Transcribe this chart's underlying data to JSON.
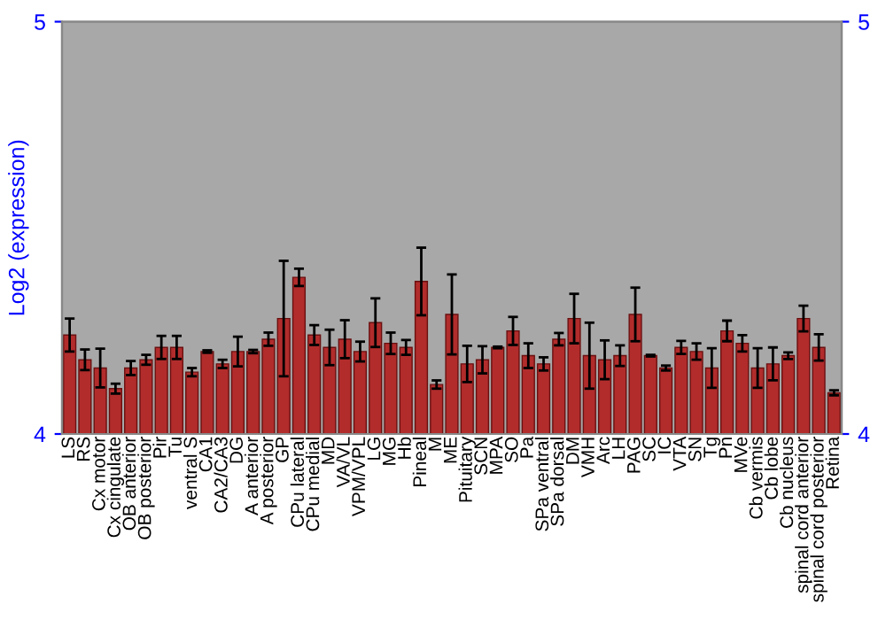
{
  "chart_data": {
    "type": "bar",
    "ylabel": "Log2 (expression)",
    "categories": [
      "LS",
      "RS",
      "Cx motor",
      "Cx cingulate",
      "OB anterior",
      "OB posterior",
      "Pir",
      "Tu",
      "ventral S",
      "CA1",
      "CA2/CA3",
      "DG",
      "A anterior",
      "A posterior",
      "GP",
      "CPu lateral",
      "CPu medial",
      "MD",
      "VA/VL",
      "VPM/VPL",
      "LG",
      "MG",
      "Hb",
      "Pineal",
      "M",
      "ME",
      "Pituitary",
      "SCN",
      "MPA",
      "SO",
      "Pa",
      "SPa ventral",
      "SPa dorsal",
      "DM",
      "VMH",
      "Arc",
      "LH",
      "PAG",
      "SC",
      "IC",
      "VTA",
      "SN",
      "Tg",
      "Pn",
      "MVe",
      "Cb vermis",
      "Cb lobe",
      "Cb nucleus",
      "spinal cord anterior",
      "spinal cord posterior",
      "Retina"
    ],
    "values": [
      4.24,
      4.18,
      4.16,
      4.11,
      4.16,
      4.18,
      4.21,
      4.21,
      4.15,
      4.2,
      4.17,
      4.2,
      4.2,
      4.23,
      4.28,
      4.38,
      4.24,
      4.21,
      4.23,
      4.2,
      4.27,
      4.22,
      4.21,
      4.37,
      4.12,
      4.29,
      4.17,
      4.18,
      4.21,
      4.25,
      4.19,
      4.17,
      4.23,
      4.28,
      4.19,
      4.18,
      4.19,
      4.29,
      4.19,
      4.16,
      4.21,
      4.2,
      4.16,
      4.25,
      4.22,
      4.16,
      4.17,
      4.19,
      4.28,
      4.21,
      4.1
    ],
    "errors": [
      0.04,
      0.025,
      0.047,
      0.012,
      0.017,
      0.012,
      0.028,
      0.028,
      0.01,
      0.003,
      0.01,
      0.036,
      0.004,
      0.016,
      0.14,
      0.021,
      0.024,
      0.043,
      0.046,
      0.024,
      0.059,
      0.026,
      0.018,
      0.082,
      0.01,
      0.097,
      0.044,
      0.033,
      0.002,
      0.034,
      0.03,
      0.016,
      0.015,
      0.06,
      0.08,
      0.047,
      0.025,
      0.065,
      0.002,
      0.006,
      0.016,
      0.02,
      0.048,
      0.025,
      0.02,
      0.048,
      0.04,
      0.008,
      0.031,
      0.032,
      0.006
    ],
    "color": "#b22c2c",
    "ylim": [
      4,
      5
    ],
    "yticks": [
      4,
      5
    ],
    "y2lim": [
      4,
      5
    ],
    "y2ticks": [
      4,
      5
    ],
    "grid": false
  }
}
